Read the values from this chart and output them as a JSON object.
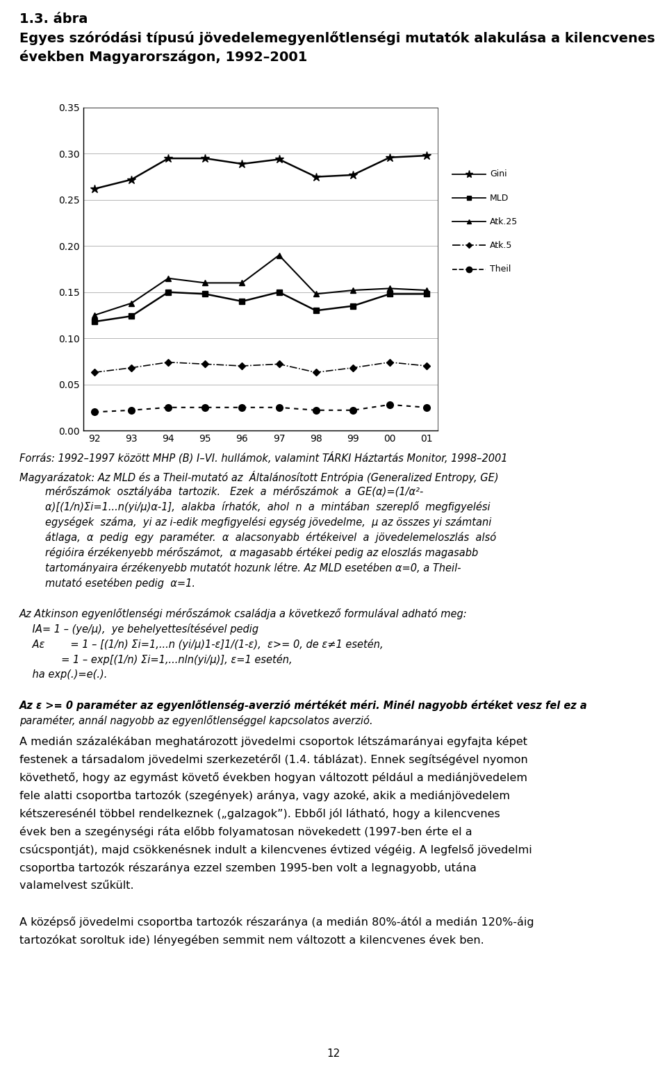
{
  "title_line1": "1.3. ábra",
  "title_line2": "Egyes szóródási típusú jövedelemegyenlőtlenségi mutatók alakulása a kilencvenes",
  "title_line3": "években Magyarországon, 1992–2001",
  "x_labels": [
    "92",
    "93",
    "94",
    "95",
    "96",
    "97",
    "98",
    "99",
    "00",
    "01"
  ],
  "Gini": [
    0.262,
    0.272,
    0.295,
    0.295,
    0.289,
    0.294,
    0.275,
    0.277,
    0.296,
    0.298
  ],
  "MLD": [
    0.118,
    0.124,
    0.15,
    0.148,
    0.14,
    0.15,
    0.13,
    0.135,
    0.148,
    0.148
  ],
  "Atk25": [
    0.125,
    0.138,
    0.165,
    0.16,
    0.16,
    0.19,
    0.148,
    0.152,
    0.154,
    0.152
  ],
  "Atk5": [
    0.063,
    0.068,
    0.074,
    0.072,
    0.07,
    0.072,
    0.063,
    0.068,
    0.074,
    0.07
  ],
  "Theil": [
    0.02,
    0.022,
    0.025,
    0.025,
    0.025,
    0.025,
    0.022,
    0.022,
    0.028,
    0.025
  ],
  "ylim": [
    0.0,
    0.35
  ],
  "yticks": [
    0.0,
    0.05,
    0.1,
    0.15,
    0.2,
    0.25,
    0.3,
    0.35
  ],
  "source_line": "Forrás: 1992–1997 között MHP (B) I–VI. hullámok, valamint TÁRKI Háztartás Monitor, 1998–2001",
  "notes_para1_l1": "Magyarázatok: Az MLD és a Theil-mutató az  Általánosított Entrópia (Generalized Entropy, GE)",
  "notes_para1_l2": "        mérőszámok  osztályába  tartozik.   Ezek  a  mérőszámok  a  GE(α)=(1/α²-",
  "notes_para1_l3": "        α)[(1/n)Σi=1...n(yi/μ)α-1],  alakba  írhatók,  ahol  n  a  mintában  szereplő  megfigyelési",
  "notes_para1_l4": "        egységek  száma,  yi az i-edik megfigyelési egység jövedelme,  μ az összes yi számtani",
  "notes_para1_l5": "        átlaga,  α  pedig  egy  paraméter.  α  alacsonyabb  értékeivel  a  jövedelemeloszlás  alsó",
  "notes_para1_l6": "        régióira érzékenyebb mérőszámot,  α magasabb értékei pedig az eloszlás magasabb",
  "notes_para1_l7": "        tartományaira érzékenyebb mutatót hozunk létre. Az MLD esetében α=0, a Theil-",
  "notes_para1_l8": "        mutató esetében pedig  α=1.",
  "notes_para2_l1": "Az Atkinson egyenlőtlenségi mérőszámok családja a következő formulával adható meg:",
  "notes_para2_l2": "    IA= 1 – (ye/μ),  ye behelyettesítésével pedig",
  "notes_para2_l3": "    Aε        = 1 – [(1/n) Σi=1,...n (yi/μ)1-ε]1/(1-ε),  ε>= 0, de ε≠1 esetén,",
  "notes_para2_l4": "             = 1 – exp[(1/n) Σi=1,...nln(yi/μ)], ε=1 esetén,",
  "notes_para2_l5": "    ha exp(.)=e(.).",
  "notes_para3_l1": "Az ε >= 0 paraméter az egyenlőtlenség-averzió mértékét méri. Minél nagyobb értéket vesz fel ez a",
  "notes_para3_l2": "paraméter, annál nagyobb az egyenlőtlenséggel kapcsolatos averzió.",
  "body_l1": "A medián százalékában meghatározott jövedelmi csoportok létszámarányai egyfajta képet",
  "body_l2": "festenek a társadalom jövedelmi szerkezetéről (1.4. táblázat). Ennek segítségével nyomon",
  "body_l3": "követhető, hogy az egymást követő években hogyan változott például a mediánjövedelem",
  "body_l4": "fele alatti csoportba tartozók (szegények) aránya, vagy azoké, akik a mediánjövedelem",
  "body_l5": "kétszeresénél többel rendelkeznek („galzagok”). Ebből jól látható, hogy a kilencvenes",
  "body_l6": "évek ben a szegénységi ráta előbb folyamatosan növekedett (1997-ben érte el a",
  "body_l7": "csúcspontját), majd csökkenésnek indult a kilencvenes évtized végéig. A legfelső jövedelmi",
  "body_l8": "csoportba tartozók részaránya ezzel szemben 1995-ben volt a legnagyobb, utána",
  "body_l9": "valamelvest szűkült.",
  "body_l10": "A középső jövedelmi csoportba tartozók részaránya (a medián 80%-ától a medián 120%-áig",
  "body_l11": "tartozókat soroltuk ide) lényegében semmit nem változott a kilencvenes évek ben."
}
